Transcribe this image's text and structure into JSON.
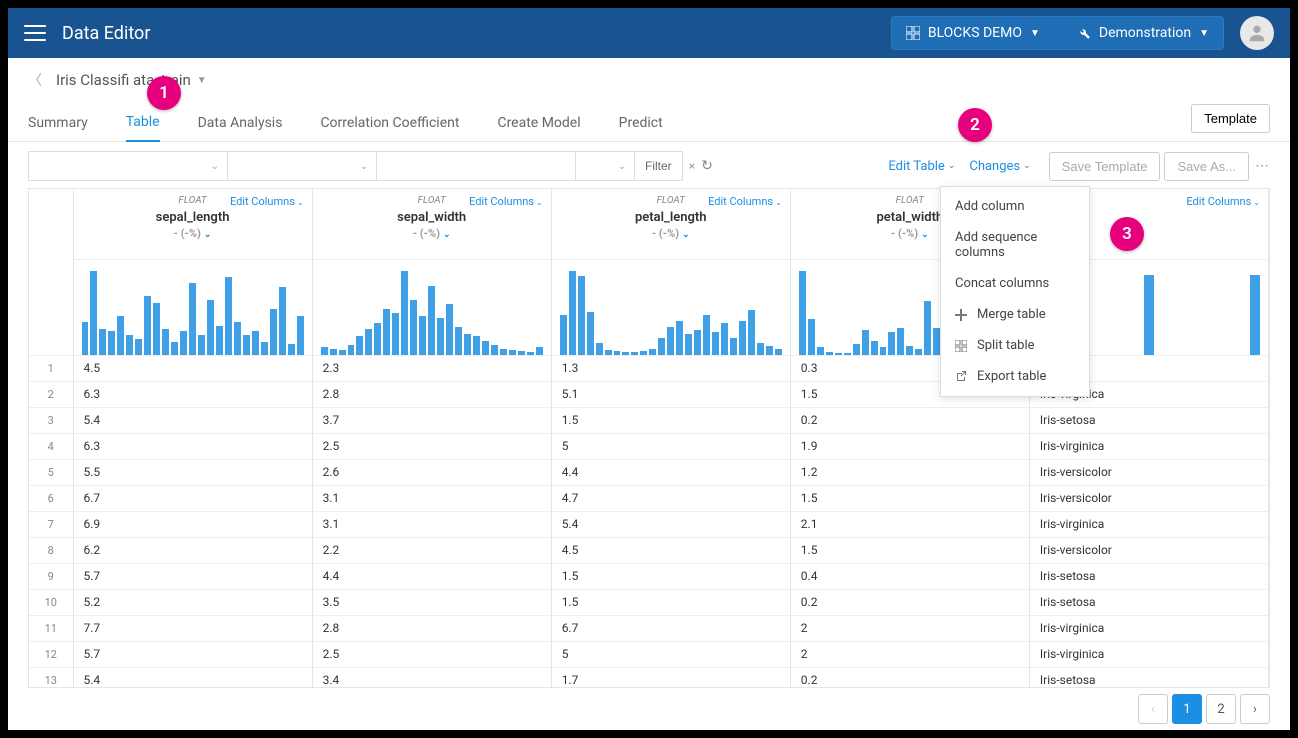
{
  "header": {
    "app_title": "Data Editor",
    "project_label": "BLOCKS DEMO",
    "workspace_label": "Demonstration"
  },
  "breadcrumb": {
    "text": "Iris Classifi         ata_train"
  },
  "tabs": [
    {
      "label": "Summary",
      "active": false
    },
    {
      "label": "Table",
      "active": true
    },
    {
      "label": "Data Analysis",
      "active": false
    },
    {
      "label": "Correlation Coefficient",
      "active": false
    },
    {
      "label": "Create Model",
      "active": false
    },
    {
      "label": "Predict",
      "active": false
    }
  ],
  "buttons": {
    "template": "Template",
    "filter": "Filter",
    "edit_table": "Edit Table",
    "changes": "Changes",
    "save_template": "Save Template",
    "save_as": "Save As..."
  },
  "dropdown": {
    "items": [
      {
        "label": "Add column",
        "icon": ""
      },
      {
        "label": "Add sequence columns",
        "icon": ""
      },
      {
        "label": "Concat columns",
        "icon": ""
      },
      {
        "label": "Merge table",
        "icon": "plus"
      },
      {
        "label": "Split table",
        "icon": "grid"
      },
      {
        "label": "Export table",
        "icon": "export"
      }
    ]
  },
  "badges": [
    "1",
    "2",
    "3"
  ],
  "columns": [
    {
      "type": "FLOAT",
      "name": "sepal_length",
      "sub": "- (-%)",
      "edit": "Edit Columns",
      "hist": [
        25,
        65,
        20,
        18,
        30,
        15,
        12,
        45,
        40,
        20,
        10,
        18,
        55,
        15,
        42,
        22,
        60,
        25,
        15,
        18,
        10,
        35,
        52,
        8,
        30
      ]
    },
    {
      "type": "FLOAT",
      "name": "sepal_width",
      "sub": "- (-%)",
      "edit": "Edit Columns",
      "hist": [
        8,
        6,
        5,
        10,
        20,
        28,
        35,
        50,
        45,
        92,
        60,
        42,
        75,
        40,
        55,
        30,
        22,
        20,
        15,
        10,
        6,
        5,
        4,
        3,
        8
      ]
    },
    {
      "type": "FLOAT",
      "name": "petal_length",
      "sub": "- (-%)",
      "edit": "Edit Columns",
      "hist": [
        35,
        75,
        70,
        38,
        10,
        4,
        3,
        2,
        2,
        3,
        5,
        15,
        25,
        30,
        18,
        22,
        35,
        20,
        28,
        15,
        30,
        40,
        10,
        8,
        5
      ]
    },
    {
      "type": "FLOAT",
      "name": "petal_width",
      "sub": "- (-%)",
      "edit": "Edit Columns",
      "hist": [
        95,
        40,
        8,
        3,
        2,
        2,
        12,
        28,
        15,
        8,
        25,
        30,
        10,
        6,
        60,
        30,
        5,
        4,
        35,
        10,
        5,
        8,
        22,
        6,
        3
      ]
    },
    {
      "type": "",
      "name": "",
      "sub": "",
      "edit": "Edit Columns",
      "hist": [
        85,
        0,
        0,
        0,
        0,
        0,
        0,
        0,
        0,
        80,
        0,
        0,
        0,
        0,
        0,
        0,
        0,
        0,
        80
      ]
    }
  ],
  "rows": [
    {
      "n": "1",
      "c": [
        "4.5",
        "2.3",
        "1.3",
        "0.3",
        ""
      ]
    },
    {
      "n": "2",
      "c": [
        "6.3",
        "2.8",
        "5.1",
        "1.5",
        "Iris-virginica"
      ]
    },
    {
      "n": "3",
      "c": [
        "5.4",
        "3.7",
        "1.5",
        "0.2",
        "Iris-setosa"
      ]
    },
    {
      "n": "4",
      "c": [
        "6.3",
        "2.5",
        "5",
        "1.9",
        "Iris-virginica"
      ]
    },
    {
      "n": "5",
      "c": [
        "5.5",
        "2.6",
        "4.4",
        "1.2",
        "Iris-versicolor"
      ]
    },
    {
      "n": "6",
      "c": [
        "6.7",
        "3.1",
        "4.7",
        "1.5",
        "Iris-versicolor"
      ]
    },
    {
      "n": "7",
      "c": [
        "6.9",
        "3.1",
        "5.4",
        "2.1",
        "Iris-virginica"
      ]
    },
    {
      "n": "8",
      "c": [
        "6.2",
        "2.2",
        "4.5",
        "1.5",
        "Iris-versicolor"
      ]
    },
    {
      "n": "9",
      "c": [
        "5.7",
        "4.4",
        "1.5",
        "0.4",
        "Iris-setosa"
      ]
    },
    {
      "n": "10",
      "c": [
        "5.2",
        "3.5",
        "1.5",
        "0.2",
        "Iris-setosa"
      ]
    },
    {
      "n": "11",
      "c": [
        "7.7",
        "2.8",
        "6.7",
        "2",
        "Iris-virginica"
      ]
    },
    {
      "n": "12",
      "c": [
        "5.7",
        "2.5",
        "5",
        "2",
        "Iris-virginica"
      ]
    },
    {
      "n": "13",
      "c": [
        "5.4",
        "3.4",
        "1.7",
        "0.2",
        "Iris-setosa"
      ]
    }
  ],
  "pagination": {
    "prev": "‹",
    "pages": [
      "1",
      "2"
    ],
    "active": "1",
    "next": "›"
  },
  "colors": {
    "navbar": "#1a5490",
    "accent": "#1a8fe3",
    "chart_bar": "#3fa0e8",
    "badge": "#e6007e"
  }
}
